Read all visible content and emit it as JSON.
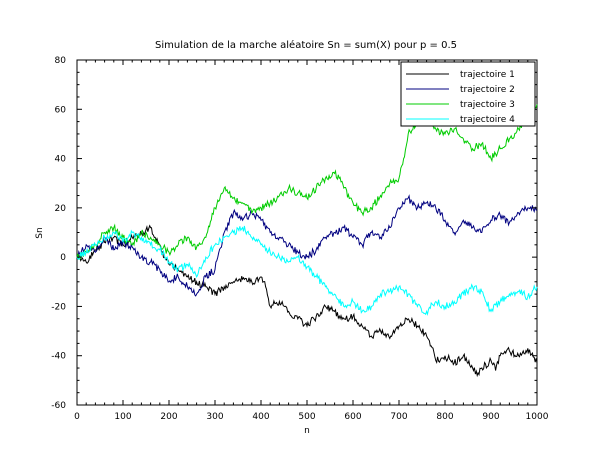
{
  "chart_data": {
    "type": "line",
    "title": "Simulation de la marche aléatoire Sn = sum(X) pour p = 0.5",
    "xlabel": "n",
    "ylabel": "Sn",
    "xlim": [
      0,
      1000
    ],
    "ylim": [
      -60,
      80
    ],
    "x_ticks": [
      0,
      100,
      200,
      300,
      400,
      500,
      600,
      700,
      800,
      900,
      1000
    ],
    "y_ticks": [
      -60,
      -40,
      -20,
      0,
      20,
      40,
      60,
      80
    ],
    "grid": false,
    "legend_position": "top-right",
    "series": [
      {
        "name": "trajectoire 1",
        "color": "#000000",
        "points": [
          [
            0,
            0
          ],
          [
            20,
            -2
          ],
          [
            40,
            3
          ],
          [
            60,
            6
          ],
          [
            80,
            8
          ],
          [
            100,
            5
          ],
          [
            120,
            8
          ],
          [
            140,
            10
          ],
          [
            160,
            12
          ],
          [
            170,
            8
          ],
          [
            180,
            5
          ],
          [
            190,
            0
          ],
          [
            200,
            -3
          ],
          [
            220,
            -5
          ],
          [
            240,
            -8
          ],
          [
            260,
            -10
          ],
          [
            280,
            -12
          ],
          [
            300,
            -15
          ],
          [
            320,
            -12
          ],
          [
            340,
            -10
          ],
          [
            360,
            -9
          ],
          [
            380,
            -10
          ],
          [
            400,
            -8
          ],
          [
            410,
            -12
          ],
          [
            420,
            -20
          ],
          [
            440,
            -18
          ],
          [
            460,
            -22
          ],
          [
            480,
            -25
          ],
          [
            500,
            -28
          ],
          [
            520,
            -24
          ],
          [
            540,
            -20
          ],
          [
            560,
            -22
          ],
          [
            580,
            -25
          ],
          [
            600,
            -24
          ],
          [
            620,
            -28
          ],
          [
            640,
            -32
          ],
          [
            660,
            -30
          ],
          [
            680,
            -33
          ],
          [
            700,
            -28
          ],
          [
            720,
            -25
          ],
          [
            740,
            -28
          ],
          [
            760,
            -32
          ],
          [
            770,
            -36
          ],
          [
            780,
            -42
          ],
          [
            800,
            -40
          ],
          [
            820,
            -43
          ],
          [
            840,
            -40
          ],
          [
            860,
            -45
          ],
          [
            870,
            -48
          ],
          [
            880,
            -45
          ],
          [
            900,
            -42
          ],
          [
            910,
            -46
          ],
          [
            920,
            -40
          ],
          [
            940,
            -38
          ],
          [
            960,
            -40
          ],
          [
            980,
            -37
          ],
          [
            1000,
            -43
          ]
        ]
      },
      {
        "name": "trajectoire 2",
        "color": "#000080",
        "points": [
          [
            0,
            0
          ],
          [
            20,
            5
          ],
          [
            40,
            2
          ],
          [
            60,
            8
          ],
          [
            80,
            3
          ],
          [
            100,
            6
          ],
          [
            120,
            4
          ],
          [
            140,
            0
          ],
          [
            160,
            -2
          ],
          [
            180,
            -5
          ],
          [
            200,
            -10
          ],
          [
            220,
            -8
          ],
          [
            240,
            -12
          ],
          [
            260,
            -15
          ],
          [
            280,
            -8
          ],
          [
            300,
            -5
          ],
          [
            320,
            10
          ],
          [
            340,
            18
          ],
          [
            360,
            15
          ],
          [
            380,
            18
          ],
          [
            400,
            15
          ],
          [
            420,
            10
          ],
          [
            440,
            8
          ],
          [
            460,
            5
          ],
          [
            480,
            2
          ],
          [
            500,
            0
          ],
          [
            520,
            3
          ],
          [
            540,
            8
          ],
          [
            560,
            10
          ],
          [
            580,
            12
          ],
          [
            600,
            8
          ],
          [
            620,
            5
          ],
          [
            640,
            10
          ],
          [
            660,
            8
          ],
          [
            680,
            12
          ],
          [
            700,
            20
          ],
          [
            720,
            24
          ],
          [
            740,
            20
          ],
          [
            760,
            22
          ],
          [
            780,
            20
          ],
          [
            800,
            15
          ],
          [
            820,
            10
          ],
          [
            840,
            15
          ],
          [
            860,
            12
          ],
          [
            880,
            10
          ],
          [
            900,
            15
          ],
          [
            920,
            17
          ],
          [
            940,
            14
          ],
          [
            960,
            18
          ],
          [
            980,
            20
          ],
          [
            1000,
            19
          ]
        ]
      },
      {
        "name": "trajectoire 3",
        "color": "#00cc00",
        "points": [
          [
            0,
            0
          ],
          [
            20,
            2
          ],
          [
            40,
            5
          ],
          [
            60,
            10
          ],
          [
            80,
            12
          ],
          [
            100,
            8
          ],
          [
            120,
            5
          ],
          [
            140,
            10
          ],
          [
            160,
            8
          ],
          [
            180,
            5
          ],
          [
            200,
            2
          ],
          [
            220,
            5
          ],
          [
            240,
            8
          ],
          [
            260,
            4
          ],
          [
            280,
            8
          ],
          [
            300,
            20
          ],
          [
            320,
            28
          ],
          [
            340,
            24
          ],
          [
            360,
            22
          ],
          [
            380,
            18
          ],
          [
            400,
            20
          ],
          [
            420,
            22
          ],
          [
            440,
            25
          ],
          [
            460,
            28
          ],
          [
            480,
            26
          ],
          [
            500,
            24
          ],
          [
            520,
            28
          ],
          [
            540,
            32
          ],
          [
            560,
            34
          ],
          [
            570,
            32
          ],
          [
            580,
            28
          ],
          [
            600,
            22
          ],
          [
            620,
            18
          ],
          [
            640,
            20
          ],
          [
            660,
            25
          ],
          [
            680,
            30
          ],
          [
            700,
            32
          ],
          [
            710,
            40
          ],
          [
            720,
            50
          ],
          [
            740,
            55
          ],
          [
            760,
            58
          ],
          [
            780,
            52
          ],
          [
            800,
            50
          ],
          [
            820,
            52
          ],
          [
            840,
            48
          ],
          [
            860,
            44
          ],
          [
            880,
            46
          ],
          [
            900,
            40
          ],
          [
            920,
            44
          ],
          [
            940,
            48
          ],
          [
            960,
            52
          ],
          [
            980,
            58
          ],
          [
            1000,
            62
          ]
        ]
      },
      {
        "name": "trajectoire 4",
        "color": "#00ffff",
        "points": [
          [
            0,
            0
          ],
          [
            20,
            2
          ],
          [
            40,
            5
          ],
          [
            60,
            8
          ],
          [
            80,
            10
          ],
          [
            100,
            6
          ],
          [
            120,
            10
          ],
          [
            140,
            8
          ],
          [
            160,
            5
          ],
          [
            180,
            3
          ],
          [
            200,
            -2
          ],
          [
            220,
            -5
          ],
          [
            240,
            -3
          ],
          [
            260,
            -8
          ],
          [
            280,
            0
          ],
          [
            300,
            5
          ],
          [
            320,
            8
          ],
          [
            340,
            10
          ],
          [
            360,
            12
          ],
          [
            380,
            8
          ],
          [
            400,
            5
          ],
          [
            420,
            2
          ],
          [
            440,
            0
          ],
          [
            460,
            -2
          ],
          [
            480,
            0
          ],
          [
            500,
            -4
          ],
          [
            520,
            -8
          ],
          [
            540,
            -12
          ],
          [
            560,
            -15
          ],
          [
            580,
            -20
          ],
          [
            600,
            -18
          ],
          [
            620,
            -22
          ],
          [
            640,
            -20
          ],
          [
            660,
            -15
          ],
          [
            680,
            -14
          ],
          [
            700,
            -12
          ],
          [
            720,
            -15
          ],
          [
            740,
            -20
          ],
          [
            760,
            -22
          ],
          [
            780,
            -18
          ],
          [
            800,
            -20
          ],
          [
            820,
            -18
          ],
          [
            840,
            -15
          ],
          [
            860,
            -12
          ],
          [
            880,
            -14
          ],
          [
            900,
            -22
          ],
          [
            920,
            -18
          ],
          [
            940,
            -15
          ],
          [
            960,
            -14
          ],
          [
            980,
            -16
          ],
          [
            1000,
            -12
          ]
        ]
      }
    ]
  }
}
